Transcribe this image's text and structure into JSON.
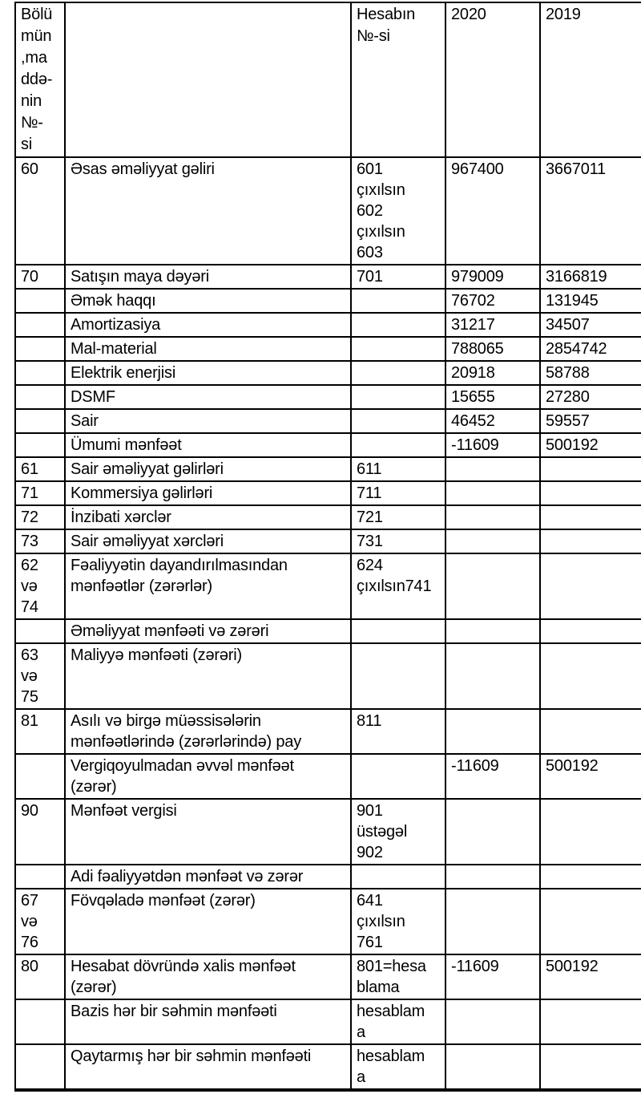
{
  "colors": {
    "background": "#ffffff",
    "border": "#000000",
    "text": "#000000"
  },
  "table": {
    "headers": {
      "section": "Bölü\nmün\n,ma\nddə-\nnin\n№-\nsi",
      "description": "",
      "account": "Hesabın\n№-si",
      "y2020": "2020",
      "y2019": "2019"
    },
    "rows": [
      {
        "section": "60",
        "description": "Əsas əməliyyat gəliri",
        "account": "601\nçıxılsın\n602\nçıxılsın\n603",
        "y2020": "967400",
        "y2019": "3667011"
      },
      {
        "section": "70",
        "description": "Satışın maya dəyəri",
        "account": "701",
        "y2020": "979009",
        "y2019": "3166819"
      },
      {
        "section": "",
        "description": "Əmək haqqı",
        "account": "",
        "y2020": "76702",
        "y2019": "131945"
      },
      {
        "section": "",
        "description": "Amortizasiya",
        "account": "",
        "y2020": "31217",
        "y2019": "34507"
      },
      {
        "section": "",
        "description": "Mal-material",
        "account": "",
        "y2020": "788065",
        "y2019": "2854742"
      },
      {
        "section": "",
        "description": "Elektrik enerjisi",
        "account": "",
        "y2020": "20918",
        "y2019": "58788"
      },
      {
        "section": "",
        "description": "DSMF",
        "account": "",
        "y2020": "15655",
        "y2019": "27280"
      },
      {
        "section": "",
        "description": "Sair",
        "account": "",
        "y2020": "46452",
        "y2019": "59557"
      },
      {
        "section": "",
        "description": "Ümumi mənfəət",
        "account": "",
        "y2020": "-11609",
        "y2019": "500192"
      },
      {
        "section": "61",
        "description": "Sair əməliyyat gəlirləri",
        "account": "611",
        "y2020": "",
        "y2019": ""
      },
      {
        "section": "71",
        "description": "Kommersiya gəlirləri",
        "account": "711",
        "y2020": "",
        "y2019": ""
      },
      {
        "section": "72",
        "description": "İnzibati xərclər",
        "account": "721",
        "y2020": "",
        "y2019": ""
      },
      {
        "section": "73",
        "description": "Sair əməliyyat xərcləri",
        "account": "731",
        "y2020": "",
        "y2019": ""
      },
      {
        "section": "62\nvə\n74",
        "description": "Fəaliyyətin dayandırılmasından\nmənfəətlər (zərərlər)",
        "account": "624\nçıxılsın741",
        "y2020": "",
        "y2019": ""
      },
      {
        "section": "",
        "description": "Əməliyyat mənfəəti və zərəri",
        "account": "",
        "y2020": "",
        "y2019": ""
      },
      {
        "section": "63\nvə\n75",
        "description": "Maliyyə mənfəəti (zərəri)",
        "account": "",
        "y2020": "",
        "y2019": ""
      },
      {
        "section": "81",
        "description": "Asılı və birgə müəssisələrin\nmənfəətlərində (zərərlərində) pay",
        "account": "811",
        "y2020": "",
        "y2019": ""
      },
      {
        "section": "",
        "description": "Vergiqoyulmadan əvvəl mənfəət\n(zərər)",
        "account": "",
        "y2020": "-11609",
        "y2019": "500192"
      },
      {
        "section": "90",
        "description": "Mənfəət vergisi",
        "account": "901\nüstəgəl\n902",
        "y2020": "",
        "y2019": ""
      },
      {
        "section": "",
        "description": "Adi fəaliyyətdən mənfəət və zərər",
        "account": "",
        "y2020": "",
        "y2019": ""
      },
      {
        "section": "67\nvə\n76",
        "description": "Fövqəladə mənfəət (zərər)",
        "account": "641\nçıxılsın\n761",
        "y2020": "",
        "y2019": ""
      },
      {
        "section": "80",
        "description": "Hesabat dövründə xalis mənfəət\n(zərər)",
        "account": "801=hesa\nblama",
        "y2020": "-11609",
        "y2019": "500192"
      },
      {
        "section": "",
        "description": "Bazis hər bir səhmin mənfəəti",
        "account": "hesablam\na",
        "y2020": "",
        "y2019": ""
      },
      {
        "section": "",
        "description": "Qaytarmış hər bir səhmin mənfəəti",
        "account": "hesablam\na",
        "y2020": "",
        "y2019": ""
      }
    ]
  }
}
